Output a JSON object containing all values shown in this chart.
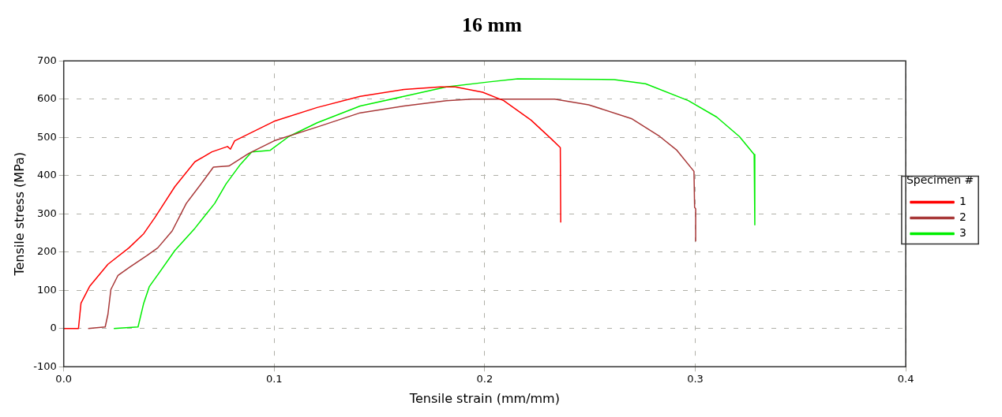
{
  "chart_data": {
    "type": "line",
    "title": "16 mm",
    "xlabel": "Tensile strain (mm/mm)",
    "ylabel": "Tensile stress (MPa)",
    "legend_title": "Specimen #",
    "xlim": [
      0,
      0.4
    ],
    "xticks": [
      {
        "value": 0,
        "label": "0.0"
      },
      0.1,
      0.2,
      0.3,
      0.4
    ],
    "ylim": [
      -100,
      700
    ],
    "yticks": [
      -100,
      0,
      100,
      200,
      300,
      400,
      500,
      600,
      700
    ],
    "grid": true,
    "legend": "right",
    "marker": "none",
    "line_style": "solid",
    "series": [
      {
        "name": "1",
        "color": "#ff0000",
        "x": [
          0,
          0.007,
          0.0082,
          0.0123,
          0.021,
          0.031,
          0.038,
          0.0434,
          0.0528,
          0.0623,
          0.0704,
          0.0778,
          0.0792,
          0.0812,
          0.1,
          0.1204,
          0.1408,
          0.1616,
          0.179,
          0.186,
          0.199,
          0.209,
          0.222,
          0.2318,
          0.2359,
          0.2361
        ],
        "values": [
          0,
          0,
          66,
          110,
          168,
          211,
          248,
          291,
          371,
          436,
          462,
          476,
          469,
          491,
          542,
          578,
          607,
          625,
          632,
          632,
          618,
          596,
          545,
          495,
          473,
          277
        ]
      },
      {
        "name": "2",
        "color": "#a83838",
        "x": [
          0.0116,
          0.0197,
          0.021,
          0.0224,
          0.0258,
          0.0312,
          0.0393,
          0.0447,
          0.0515,
          0.0582,
          0.0663,
          0.0711,
          0.0785,
          0.0879,
          0.1,
          0.1204,
          0.1408,
          0.1616,
          0.1818,
          0.194,
          0.2332,
          0.2494,
          0.2697,
          0.2832,
          0.2913,
          0.2994,
          0.2997,
          0.3002,
          0.3002
        ],
        "values": [
          0,
          4,
          37,
          102,
          139,
          160,
          190,
          211,
          255,
          327,
          386,
          422,
          425,
          458,
          491,
          527,
          564,
          582,
          596,
          600,
          600,
          585,
          549,
          502,
          466,
          411,
          317,
          313,
          229
        ]
      },
      {
        "name": "3",
        "color": "#00ee00",
        "x": [
          0.0238,
          0.0353,
          0.038,
          0.0407,
          0.0454,
          0.0528,
          0.0623,
          0.0717,
          0.0771,
          0.0839,
          0.0893,
          0.0981,
          0.1069,
          0.1204,
          0.1408,
          0.1616,
          0.1818,
          0.2021,
          0.2156,
          0.2615,
          0.2764,
          0.2967,
          0.3102,
          0.321,
          0.328,
          0.3283
        ],
        "values": [
          0,
          4,
          66,
          110,
          146,
          204,
          262,
          327,
          378,
          429,
          462,
          466,
          502,
          538,
          582,
          607,
          632,
          645,
          653,
          651,
          640,
          596,
          553,
          502,
          455,
          271
        ]
      }
    ]
  }
}
